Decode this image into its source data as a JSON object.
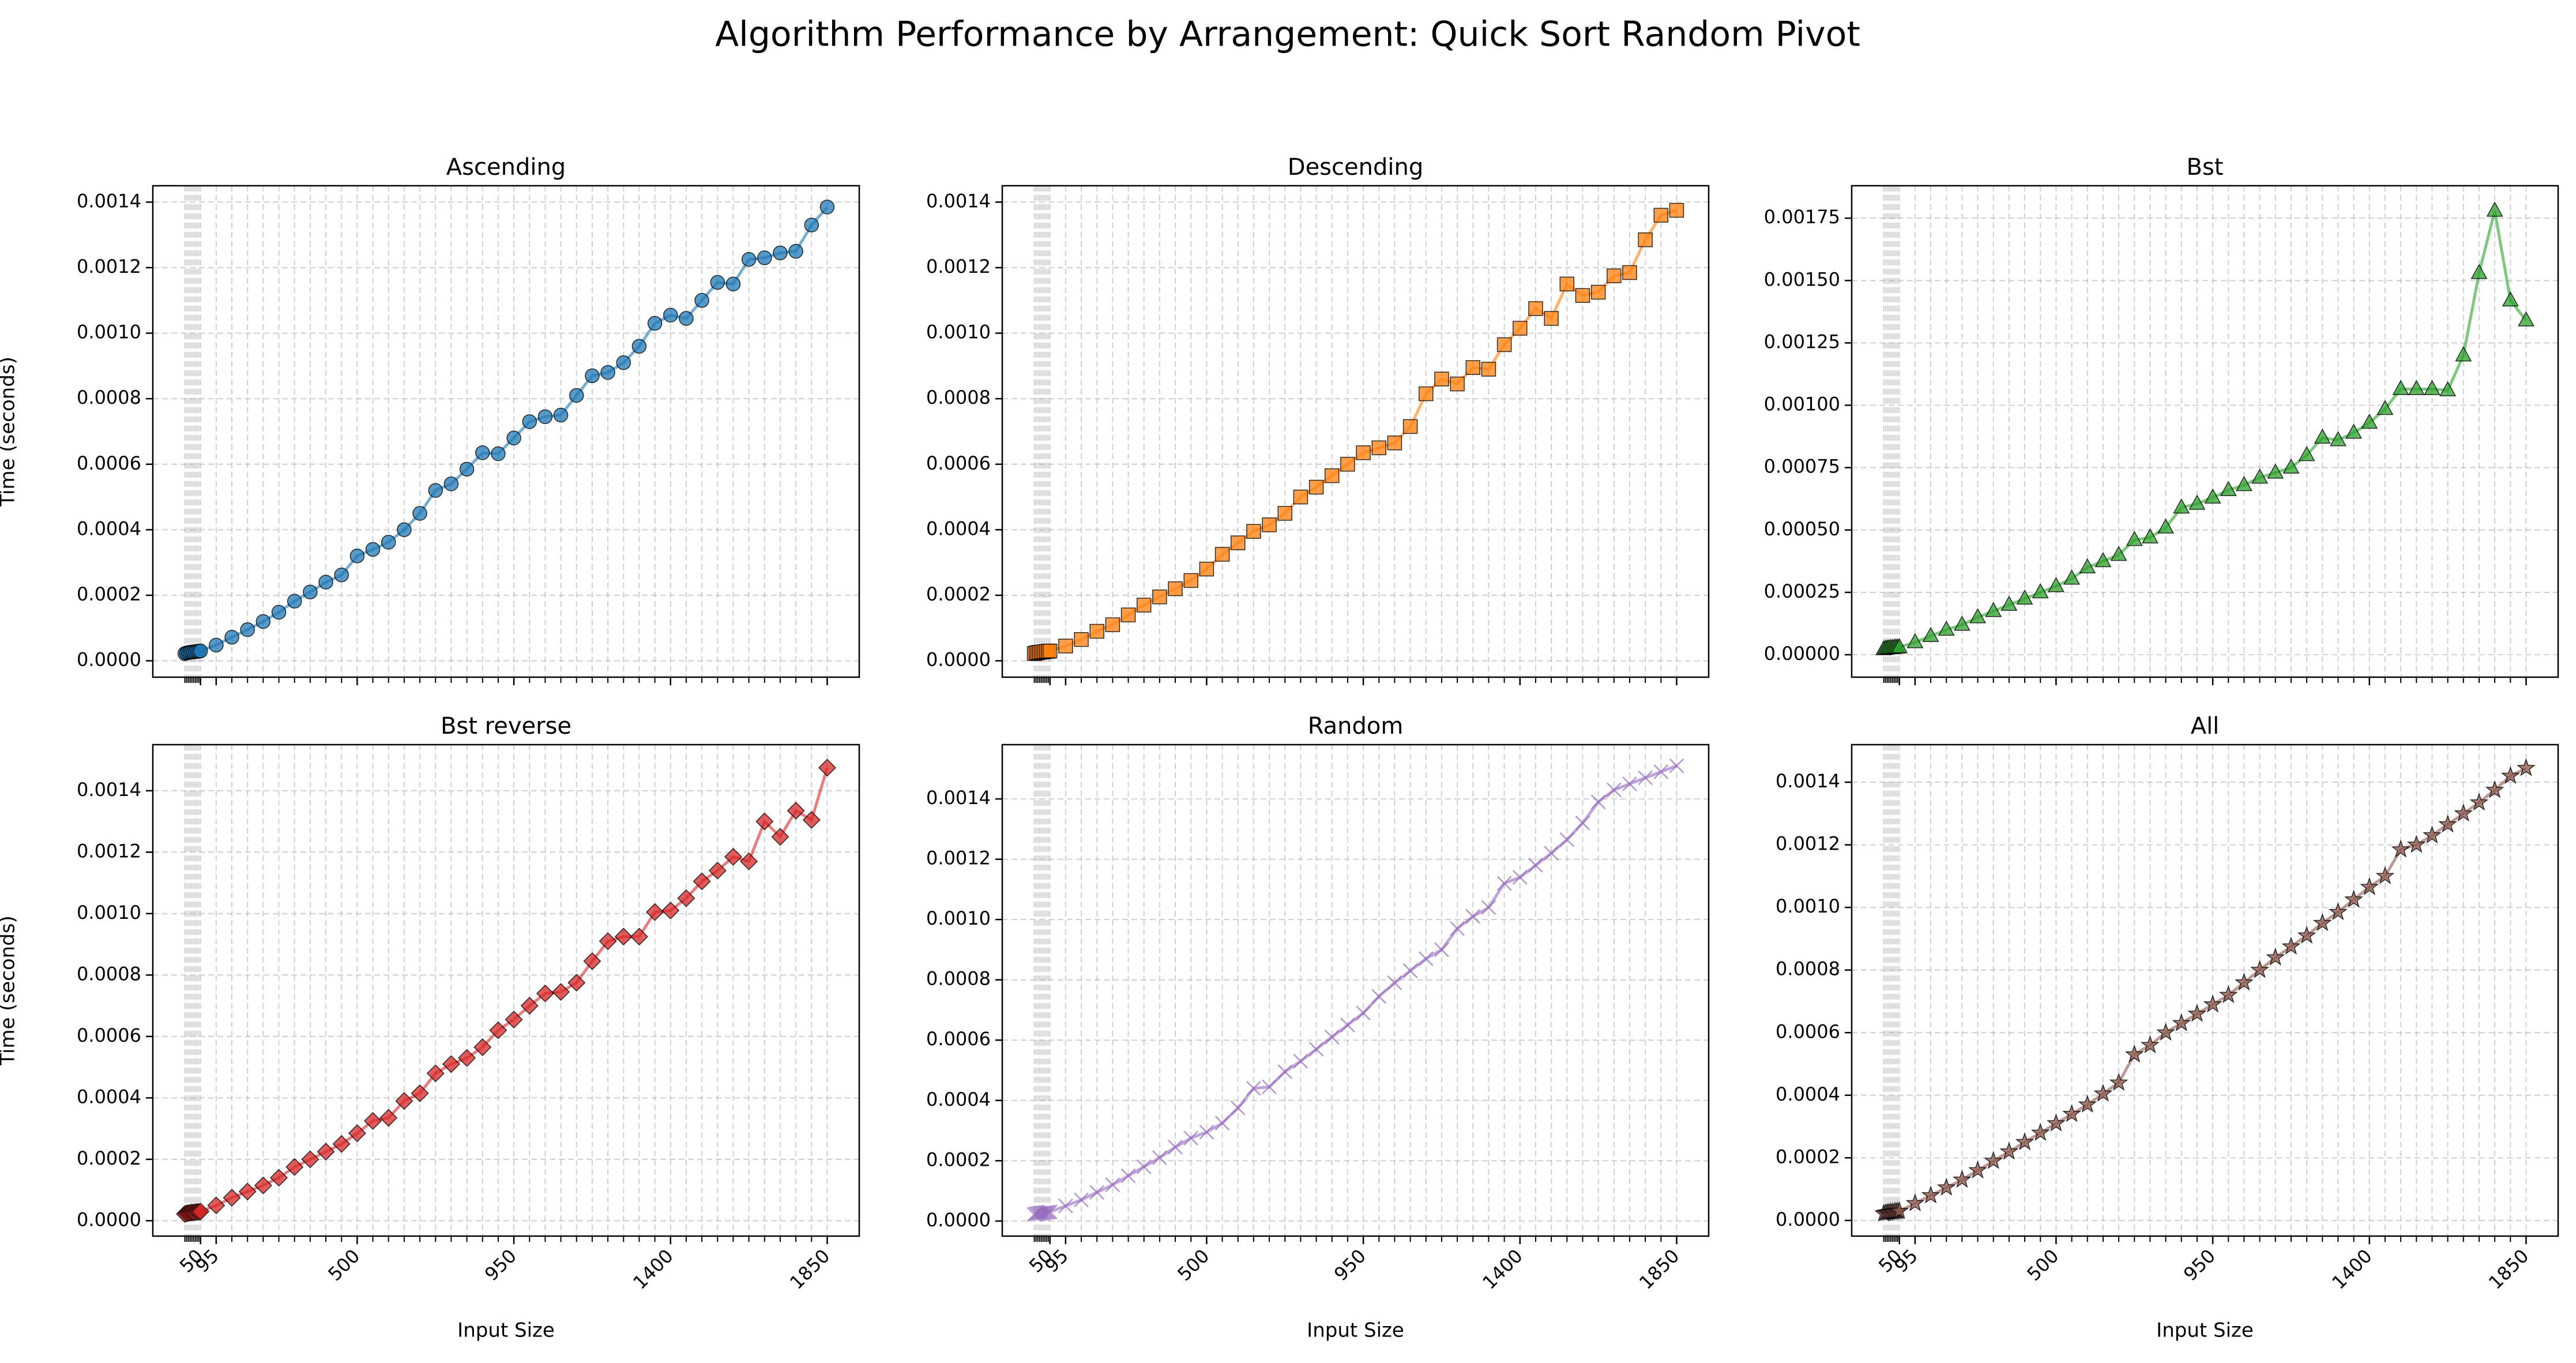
{
  "title": "Algorithm Performance by Arrangement: Quick Sort Random Pivot",
  "chart_data": [
    {
      "type": "line",
      "title": "Ascending",
      "ylabel": "Time (seconds)",
      "color": "#1f77b4",
      "marker": "o",
      "grid": true,
      "show_xticklabels": false,
      "x": [
        5,
        10,
        15,
        20,
        25,
        30,
        35,
        40,
        45,
        50,
        95,
        140,
        185,
        230,
        275,
        320,
        365,
        410,
        455,
        500,
        545,
        590,
        635,
        680,
        725,
        770,
        815,
        860,
        905,
        950,
        995,
        1040,
        1085,
        1130,
        1175,
        1220,
        1265,
        1310,
        1355,
        1400,
        1445,
        1490,
        1535,
        1580,
        1625,
        1670,
        1715,
        1760,
        1805,
        1850
      ],
      "values": [
        2.2e-05,
        2.4e-05,
        2.5e-05,
        2.6e-05,
        2.7e-05,
        2.7e-05,
        2.8e-05,
        2.9e-05,
        2.9e-05,
        3e-05,
        4.8e-05,
        7.2e-05,
        9.5e-05,
        0.00012,
        0.000148,
        0.000182,
        0.00021,
        0.00024,
        0.000262,
        0.00032,
        0.00034,
        0.000362,
        0.0004,
        0.00045,
        0.00052,
        0.00054,
        0.000585,
        0.000635,
        0.000632,
        0.00068,
        0.00073,
        0.000745,
        0.00075,
        0.00081,
        0.00087,
        0.00088,
        0.00091,
        0.00096,
        0.00103,
        0.001055,
        0.001045,
        0.0011,
        0.001155,
        0.00115,
        0.001225,
        0.00123,
        0.001245,
        0.00125,
        0.00133,
        0.001385
      ],
      "xlim": [
        -87,
        1942
      ],
      "xticks": [
        50,
        95,
        500,
        950,
        1400,
        1850
      ],
      "ylim": [
        -5e-05,
        0.00145
      ],
      "yticks": [
        {
          "value": 0,
          "label": "0.0000"
        },
        {
          "value": 0.0002,
          "label": "0.0002"
        },
        {
          "value": 0.0004,
          "label": "0.0004"
        },
        {
          "value": 0.0006,
          "label": "0.0006"
        },
        {
          "value": 0.0008,
          "label": "0.0008"
        },
        {
          "value": 0.001,
          "label": "0.0010"
        },
        {
          "value": 0.0012,
          "label": "0.0012"
        },
        {
          "value": 0.0014,
          "label": "0.0014"
        }
      ]
    },
    {
      "type": "line",
      "title": "Descending",
      "color": "#ff7f0e",
      "marker": "s",
      "grid": true,
      "show_xticklabels": false,
      "x": [
        5,
        10,
        15,
        20,
        25,
        30,
        35,
        40,
        45,
        50,
        95,
        140,
        185,
        230,
        275,
        320,
        365,
        410,
        455,
        500,
        545,
        590,
        635,
        680,
        725,
        770,
        815,
        860,
        905,
        950,
        995,
        1040,
        1085,
        1130,
        1175,
        1220,
        1265,
        1310,
        1355,
        1400,
        1445,
        1490,
        1535,
        1580,
        1625,
        1670,
        1715,
        1760,
        1805,
        1850
      ],
      "values": [
        2.2e-05,
        2.4e-05,
        2.5e-05,
        2.6e-05,
        2.7e-05,
        2.7e-05,
        2.8e-05,
        2.9e-05,
        2.9e-05,
        3e-05,
        4.5e-05,
        6.5e-05,
        9e-05,
        0.00011,
        0.00014,
        0.00017,
        0.000195,
        0.00022,
        0.000245,
        0.00028,
        0.000325,
        0.00036,
        0.000395,
        0.000415,
        0.00045,
        0.0005,
        0.00053,
        0.000565,
        0.0006,
        0.000635,
        0.00065,
        0.000665,
        0.000715,
        0.000815,
        0.00086,
        0.000845,
        0.000895,
        0.00089,
        0.000965,
        0.001015,
        0.001075,
        0.001045,
        0.00115,
        0.001115,
        0.001125,
        0.001175,
        0.001185,
        0.001285,
        0.00136,
        0.001375
      ],
      "xlim": [
        -87,
        1942
      ],
      "xticks": [
        50,
        95,
        500,
        950,
        1400,
        1850
      ],
      "ylim": [
        -5e-05,
        0.00145
      ],
      "yticks": [
        {
          "value": 0,
          "label": "0.0000"
        },
        {
          "value": 0.0002,
          "label": "0.0002"
        },
        {
          "value": 0.0004,
          "label": "0.0004"
        },
        {
          "value": 0.0006,
          "label": "0.0006"
        },
        {
          "value": 0.0008,
          "label": "0.0008"
        },
        {
          "value": 0.001,
          "label": "0.0010"
        },
        {
          "value": 0.0012,
          "label": "0.0012"
        },
        {
          "value": 0.0014,
          "label": "0.0014"
        }
      ]
    },
    {
      "type": "line",
      "title": "Bst",
      "color": "#2ca02c",
      "marker": "^",
      "grid": true,
      "show_xticklabels": false,
      "x": [
        5,
        10,
        15,
        20,
        25,
        30,
        35,
        40,
        45,
        50,
        95,
        140,
        185,
        230,
        275,
        320,
        365,
        410,
        455,
        500,
        545,
        590,
        635,
        680,
        725,
        770,
        815,
        860,
        905,
        950,
        995,
        1040,
        1085,
        1130,
        1175,
        1220,
        1265,
        1310,
        1355,
        1400,
        1445,
        1490,
        1535,
        1580,
        1625,
        1670,
        1715,
        1760,
        1805,
        1850
      ],
      "values": [
        2.2e-05,
        2.4e-05,
        2.5e-05,
        2.6e-05,
        2.7e-05,
        2.7e-05,
        2.8e-05,
        2.9e-05,
        2.9e-05,
        3e-05,
        5e-05,
        7.5e-05,
        0.0001,
        0.00012,
        0.00015,
        0.000175,
        0.0002,
        0.000225,
        0.00025,
        0.000275,
        0.000305,
        0.00035,
        0.000375,
        0.0004,
        0.00046,
        0.00047,
        0.00051,
        0.00059,
        0.000605,
        0.00063,
        0.00066,
        0.00068,
        0.00071,
        0.00073,
        0.00075,
        0.0008,
        0.00087,
        0.00086,
        0.00089,
        0.00093,
        0.000985,
        0.001065,
        0.001065,
        0.001065,
        0.00106,
        0.0012,
        0.00153,
        0.00178,
        0.00142,
        0.00134
      ],
      "xlim": [
        -87,
        1942
      ],
      "xticks": [
        50,
        95,
        500,
        950,
        1400,
        1850
      ],
      "ylim": [
        -9e-05,
        0.00188
      ],
      "yticks": [
        {
          "value": 0,
          "label": "0.00000"
        },
        {
          "value": 0.00025,
          "label": "0.00025"
        },
        {
          "value": 0.0005,
          "label": "0.00050"
        },
        {
          "value": 0.00075,
          "label": "0.00075"
        },
        {
          "value": 0.001,
          "label": "0.00100"
        },
        {
          "value": 0.00125,
          "label": "0.00125"
        },
        {
          "value": 0.0015,
          "label": "0.00150"
        },
        {
          "value": 0.00175,
          "label": "0.00175"
        }
      ]
    },
    {
      "type": "line",
      "title": "Bst reverse",
      "ylabel": "Time (seconds)",
      "xlabel": "Input Size",
      "color": "#d62728",
      "marker": "D",
      "grid": true,
      "show_xticklabels": true,
      "x": [
        5,
        10,
        15,
        20,
        25,
        30,
        35,
        40,
        45,
        50,
        95,
        140,
        185,
        230,
        275,
        320,
        365,
        410,
        455,
        500,
        545,
        590,
        635,
        680,
        725,
        770,
        815,
        860,
        905,
        950,
        995,
        1040,
        1085,
        1130,
        1175,
        1220,
        1265,
        1310,
        1355,
        1400,
        1445,
        1490,
        1535,
        1580,
        1625,
        1670,
        1715,
        1760,
        1805,
        1850
      ],
      "values": [
        2.2e-05,
        2.4e-05,
        2.5e-05,
        2.6e-05,
        2.7e-05,
        2.7e-05,
        2.8e-05,
        2.9e-05,
        2.9e-05,
        3e-05,
        5e-05,
        7.5e-05,
        9.5e-05,
        0.000115,
        0.00014,
        0.000175,
        0.0002,
        0.000225,
        0.00025,
        0.000285,
        0.000325,
        0.000335,
        0.00039,
        0.000415,
        0.00048,
        0.00051,
        0.00053,
        0.000565,
        0.00062,
        0.000655,
        0.0007,
        0.00074,
        0.000745,
        0.000775,
        0.000845,
        0.00091,
        0.000925,
        0.000925,
        0.001005,
        0.00101,
        0.00105,
        0.001105,
        0.00114,
        0.001185,
        0.00117,
        0.0013,
        0.00125,
        0.001335,
        0.001305,
        0.001475
      ],
      "xlim": [
        -87,
        1942
      ],
      "xticks": [
        50,
        95,
        500,
        950,
        1400,
        1850
      ],
      "ylim": [
        -5e-05,
        0.00155
      ],
      "yticks": [
        {
          "value": 0,
          "label": "0.0000"
        },
        {
          "value": 0.0002,
          "label": "0.0002"
        },
        {
          "value": 0.0004,
          "label": "0.0004"
        },
        {
          "value": 0.0006,
          "label": "0.0006"
        },
        {
          "value": 0.0008,
          "label": "0.0008"
        },
        {
          "value": 0.001,
          "label": "0.0010"
        },
        {
          "value": 0.0012,
          "label": "0.0012"
        },
        {
          "value": 0.0014,
          "label": "0.0014"
        }
      ]
    },
    {
      "type": "line",
      "title": "Random",
      "xlabel": "Input Size",
      "color": "#9467bd",
      "marker": "x",
      "grid": true,
      "show_xticklabels": true,
      "x": [
        5,
        10,
        15,
        20,
        25,
        30,
        35,
        40,
        45,
        50,
        95,
        140,
        185,
        230,
        275,
        320,
        365,
        410,
        455,
        500,
        545,
        590,
        635,
        680,
        725,
        770,
        815,
        860,
        905,
        950,
        995,
        1040,
        1085,
        1130,
        1175,
        1220,
        1265,
        1310,
        1355,
        1400,
        1445,
        1490,
        1535,
        1580,
        1625,
        1670,
        1715,
        1760,
        1805,
        1850
      ],
      "values": [
        2.2e-05,
        2.4e-05,
        2.5e-05,
        2.6e-05,
        2.7e-05,
        2.7e-05,
        2.8e-05,
        2.9e-05,
        2.9e-05,
        3e-05,
        5e-05,
        7e-05,
        9.5e-05,
        0.00012,
        0.00015,
        0.00018,
        0.00021,
        0.000245,
        0.000275,
        0.000295,
        0.000325,
        0.000375,
        0.00044,
        0.000445,
        0.000495,
        0.00053,
        0.00057,
        0.00061,
        0.00065,
        0.00069,
        0.000745,
        0.00079,
        0.00083,
        0.00087,
        0.0009,
        0.00097,
        0.00101,
        0.00104,
        0.00112,
        0.00114,
        0.00118,
        0.00122,
        0.001265,
        0.00132,
        0.00139,
        0.00143,
        0.00145,
        0.00147,
        0.00149,
        0.00151
      ],
      "xlim": [
        -87,
        1942
      ],
      "xticks": [
        50,
        95,
        500,
        950,
        1400,
        1850
      ],
      "ylim": [
        -5e-05,
        0.00158
      ],
      "yticks": [
        {
          "value": 0,
          "label": "0.0000"
        },
        {
          "value": 0.0002,
          "label": "0.0002"
        },
        {
          "value": 0.0004,
          "label": "0.0004"
        },
        {
          "value": 0.0006,
          "label": "0.0006"
        },
        {
          "value": 0.0008,
          "label": "0.0008"
        },
        {
          "value": 0.001,
          "label": "0.0010"
        },
        {
          "value": 0.0012,
          "label": "0.0012"
        },
        {
          "value": 0.0014,
          "label": "0.0014"
        }
      ]
    },
    {
      "type": "line",
      "title": "All",
      "xlabel": "Input Size",
      "color": "#8c564b",
      "marker": "*",
      "grid": true,
      "show_xticklabels": true,
      "x": [
        5,
        10,
        15,
        20,
        25,
        30,
        35,
        40,
        45,
        50,
        95,
        140,
        185,
        230,
        275,
        320,
        365,
        410,
        455,
        500,
        545,
        590,
        635,
        680,
        725,
        770,
        815,
        860,
        905,
        950,
        995,
        1040,
        1085,
        1130,
        1175,
        1220,
        1265,
        1310,
        1355,
        1400,
        1445,
        1490,
        1535,
        1580,
        1625,
        1670,
        1715,
        1760,
        1805,
        1850
      ],
      "values": [
        2.2e-05,
        2.4e-05,
        2.5e-05,
        2.6e-05,
        2.7e-05,
        2.7e-05,
        2.8e-05,
        2.9e-05,
        2.9e-05,
        3e-05,
        5.5e-05,
        8e-05,
        0.000105,
        0.00013,
        0.00016,
        0.00019,
        0.00022,
        0.00025,
        0.00028,
        0.00031,
        0.00034,
        0.00037,
        0.000405,
        0.00044,
        0.00053,
        0.00056,
        0.0006,
        0.00063,
        0.00066,
        0.00069,
        0.00072,
        0.00076,
        0.0008,
        0.00084,
        0.000875,
        0.00091,
        0.00095,
        0.000985,
        0.001025,
        0.001065,
        0.0011,
        0.001185,
        0.0012,
        0.00123,
        0.001265,
        0.0013,
        0.001335,
        0.001375,
        0.00142,
        0.001445
      ],
      "xlim": [
        -87,
        1942
      ],
      "xticks": [
        50,
        95,
        500,
        950,
        1400,
        1850
      ],
      "ylim": [
        -5e-05,
        0.00152
      ],
      "yticks": [
        {
          "value": 0,
          "label": "0.0000"
        },
        {
          "value": 0.0002,
          "label": "0.0002"
        },
        {
          "value": 0.0004,
          "label": "0.0004"
        },
        {
          "value": 0.0006,
          "label": "0.0006"
        },
        {
          "value": 0.0008,
          "label": "0.0008"
        },
        {
          "value": 0.001,
          "label": "0.0010"
        },
        {
          "value": 0.0012,
          "label": "0.0012"
        },
        {
          "value": 0.0014,
          "label": "0.0014"
        }
      ]
    }
  ]
}
